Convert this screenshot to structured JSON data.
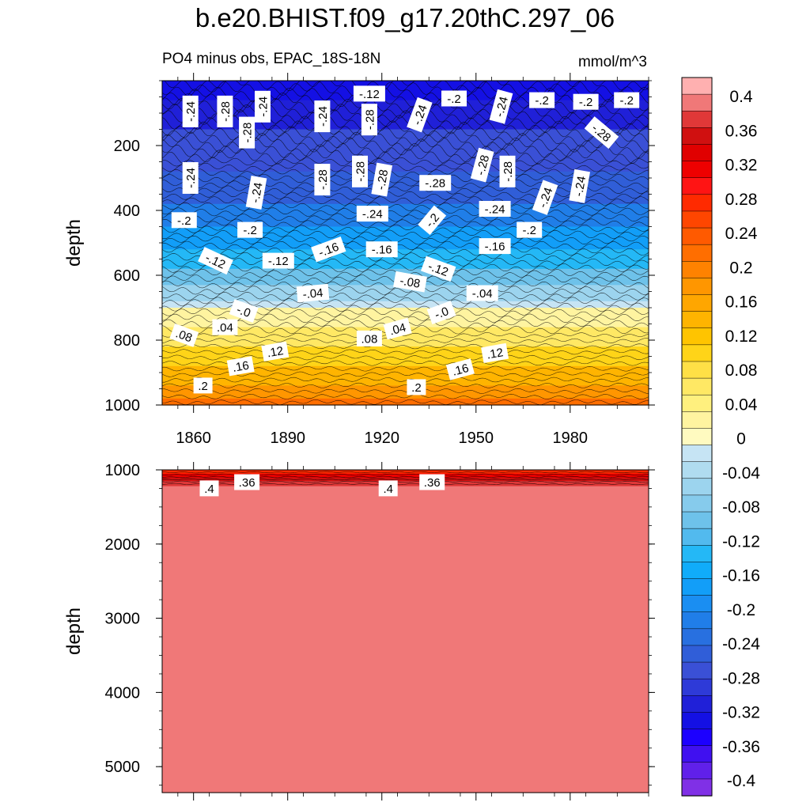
{
  "chart_data": {
    "type": "contour",
    "title": "b.e20.BHIST.f09_g17.20thC.297_06",
    "subtitle_left": "PO4 minus obs, EPAC_18S-18N",
    "subtitle_right": "mmol/m^3",
    "x_range": [
      1850,
      2005
    ],
    "x_ticks": [
      "1860",
      "1890",
      "1920",
      "1950",
      "1980"
    ],
    "panels": [
      {
        "name": "upper",
        "ylabel": "depth",
        "ylim": [
          1000,
          0
        ],
        "y_ticks": [
          "200",
          "400",
          "600",
          "800",
          "1000"
        ],
        "bands": [
          {
            "depth": 0,
            "value": -0.34
          },
          {
            "depth": 60,
            "value": -0.32
          },
          {
            "depth": 150,
            "value": -0.28
          },
          {
            "depth": 280,
            "value": -0.26
          },
          {
            "depth": 380,
            "value": -0.22
          },
          {
            "depth": 450,
            "value": -0.18
          },
          {
            "depth": 520,
            "value": -0.14
          },
          {
            "depth": 580,
            "value": -0.1
          },
          {
            "depth": 630,
            "value": -0.06
          },
          {
            "depth": 680,
            "value": -0.02
          },
          {
            "depth": 700,
            "value": 0.02
          },
          {
            "depth": 760,
            "value": 0.06
          },
          {
            "depth": 820,
            "value": 0.1
          },
          {
            "depth": 880,
            "value": 0.14
          },
          {
            "depth": 940,
            "value": 0.18
          },
          {
            "depth": 980,
            "value": 0.22
          },
          {
            "depth": 1000,
            "value": 0.24
          }
        ],
        "contour_labels": [
          {
            "x": 1859,
            "depth": 95,
            "text": "-.24",
            "angle": -90
          },
          {
            "x": 1870,
            "depth": 95,
            "text": "-.28",
            "angle": -90
          },
          {
            "x": 1882,
            "depth": 80,
            "text": "-.24",
            "angle": -90
          },
          {
            "x": 1877,
            "depth": 160,
            "text": "-.28",
            "angle": -90
          },
          {
            "x": 1901,
            "depth": 110,
            "text": "-.24",
            "angle": -90
          },
          {
            "x": 1916,
            "depth": 40,
            "text": "-.12",
            "angle": 0
          },
          {
            "x": 1916,
            "depth": 120,
            "text": "-.28",
            "angle": -90
          },
          {
            "x": 1932,
            "depth": 105,
            "text": "-.24",
            "angle": -70
          },
          {
            "x": 1943,
            "depth": 55,
            "text": "-.2",
            "angle": 0
          },
          {
            "x": 1958,
            "depth": 80,
            "text": "-.24",
            "angle": -75
          },
          {
            "x": 1971,
            "depth": 60,
            "text": "-.2",
            "angle": 0
          },
          {
            "x": 1985,
            "depth": 65,
            "text": "-.2",
            "angle": 0
          },
          {
            "x": 1998,
            "depth": 60,
            "text": "-.2",
            "angle": 0
          },
          {
            "x": 1990,
            "depth": 160,
            "text": "-.28",
            "angle": 40
          },
          {
            "x": 1859,
            "depth": 300,
            "text": "-.24",
            "angle": -90
          },
          {
            "x": 1880,
            "depth": 345,
            "text": "-.24",
            "angle": -80
          },
          {
            "x": 1901,
            "depth": 305,
            "text": "-.28",
            "angle": -90
          },
          {
            "x": 1913,
            "depth": 280,
            "text": "-.28",
            "angle": -90
          },
          {
            "x": 1920,
            "depth": 305,
            "text": "-.28",
            "angle": -80
          },
          {
            "x": 1937,
            "depth": 315,
            "text": "-.28",
            "angle": 0
          },
          {
            "x": 1952,
            "depth": 260,
            "text": "-.28",
            "angle": -75
          },
          {
            "x": 1960,
            "depth": 280,
            "text": "-.28",
            "angle": -90
          },
          {
            "x": 1972,
            "depth": 360,
            "text": "-.24",
            "angle": -70
          },
          {
            "x": 1983,
            "depth": 325,
            "text": "-.24",
            "angle": -80
          },
          {
            "x": 1857,
            "depth": 430,
            "text": "-.2",
            "angle": 0
          },
          {
            "x": 1878,
            "depth": 460,
            "text": "-.2",
            "angle": 0
          },
          {
            "x": 1917,
            "depth": 410,
            "text": "-.24",
            "angle": 0
          },
          {
            "x": 1936,
            "depth": 430,
            "text": "-.2",
            "angle": -50
          },
          {
            "x": 1956,
            "depth": 395,
            "text": "-.24",
            "angle": 0
          },
          {
            "x": 1967,
            "depth": 460,
            "text": "-.2",
            "angle": 0
          },
          {
            "x": 1867,
            "depth": 555,
            "text": "-.12",
            "angle": 25
          },
          {
            "x": 1887,
            "depth": 555,
            "text": "-.12",
            "angle": 0
          },
          {
            "x": 1903,
            "depth": 520,
            "text": "-.16",
            "angle": -20
          },
          {
            "x": 1920,
            "depth": 520,
            "text": "-.16",
            "angle": 0
          },
          {
            "x": 1938,
            "depth": 580,
            "text": "-.12",
            "angle": 20
          },
          {
            "x": 1956,
            "depth": 510,
            "text": "-.16",
            "angle": 0
          },
          {
            "x": 1929,
            "depth": 620,
            "text": "-.08",
            "angle": 10
          },
          {
            "x": 1898,
            "depth": 655,
            "text": "-.04",
            "angle": -5
          },
          {
            "x": 1952,
            "depth": 655,
            "text": "-.04",
            "angle": 0
          },
          {
            "x": 1876,
            "depth": 710,
            "text": "-.0",
            "angle": 20
          },
          {
            "x": 1939,
            "depth": 715,
            "text": "-.0",
            "angle": -20
          },
          {
            "x": 1870,
            "depth": 760,
            "text": ".04",
            "angle": 0
          },
          {
            "x": 1925,
            "depth": 765,
            "text": ".04",
            "angle": -15
          },
          {
            "x": 1857,
            "depth": 785,
            "text": ".08",
            "angle": 20
          },
          {
            "x": 1916,
            "depth": 795,
            "text": ".08",
            "angle": 0
          },
          {
            "x": 1886,
            "depth": 835,
            "text": ".12",
            "angle": -10
          },
          {
            "x": 1956,
            "depth": 840,
            "text": ".12",
            "angle": -10
          },
          {
            "x": 1875,
            "depth": 880,
            "text": ".16",
            "angle": -10
          },
          {
            "x": 1945,
            "depth": 890,
            "text": ".16",
            "angle": -15
          },
          {
            "x": 1863,
            "depth": 940,
            "text": ".2",
            "angle": 0
          },
          {
            "x": 1931,
            "depth": 945,
            "text": ".2",
            "angle": 0
          }
        ]
      },
      {
        "name": "lower",
        "ylabel": "depth",
        "ylim": [
          5350,
          1000
        ],
        "y_ticks": [
          "1000",
          "2000",
          "3000",
          "4000",
          "5000"
        ],
        "bands": [
          {
            "depth": 1000,
            "value": 0.28
          },
          {
            "depth": 1050,
            "value": 0.32
          },
          {
            "depth": 1100,
            "value": 0.36
          },
          {
            "depth": 1150,
            "value": 0.38
          },
          {
            "depth": 1220,
            "value": 0.4
          },
          {
            "depth": 5350,
            "value": 0.4
          }
        ],
        "contour_labels": [
          {
            "x": 1865,
            "depth": 1250,
            "text": ".4",
            "angle": 0
          },
          {
            "x": 1877,
            "depth": 1165,
            "text": ".36",
            "angle": 0
          },
          {
            "x": 1922,
            "depth": 1250,
            "text": ".4",
            "angle": 0
          },
          {
            "x": 1936,
            "depth": 1165,
            "text": ".36",
            "angle": 0
          }
        ]
      }
    ],
    "colorbar": {
      "labels": [
        "0.4",
        "0.36",
        "0.32",
        "0.28",
        "0.24",
        "0.2",
        "0.16",
        "0.12",
        "0.08",
        "0.04",
        "0",
        "-0.04",
        "-0.08",
        "-0.12",
        "-0.16",
        "-0.2",
        "-0.24",
        "-0.28",
        "-0.32",
        "-0.36",
        "-0.4"
      ],
      "colors_top_to_bottom": [
        "#ffb0b0",
        "#f07878",
        "#e03838",
        "#d01010",
        "#e00000",
        "#ee0000",
        "#ff1414",
        "#ff2a00",
        "#ff4600",
        "#ff5a00",
        "#ff6e00",
        "#ff8200",
        "#ff9600",
        "#ffa600",
        "#ffb400",
        "#ffc400",
        "#ffd418",
        "#ffe046",
        "#ffe864",
        "#fff07e",
        "#fff4a0",
        "#fffac0",
        "#c6e4f4",
        "#b0dcf0",
        "#9cd4ee",
        "#86cbec",
        "#6ec2ea",
        "#52baee",
        "#24b8f6",
        "#10acfa",
        "#129ef8",
        "#1a8ef2",
        "#207ee8",
        "#2870e0",
        "#305ed8",
        "#3a50d6",
        "#2e3ad8",
        "#2020d8",
        "#1410e4",
        "#1c00ff",
        "#4010f0",
        "#6020ea",
        "#8030e6"
      ]
    }
  }
}
